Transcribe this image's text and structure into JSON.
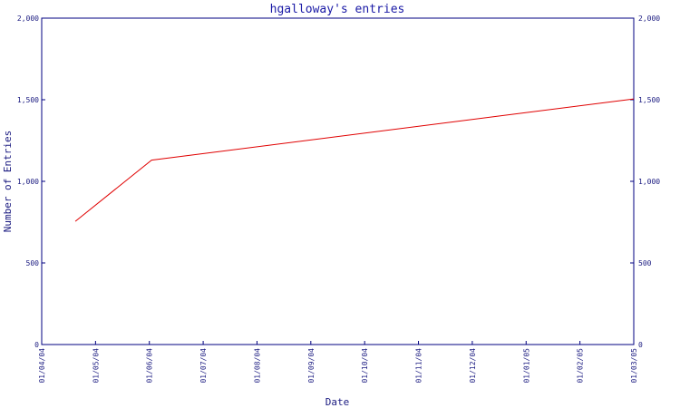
{
  "chart_data": {
    "type": "line",
    "title": "hgalloway's entries",
    "xlabel": "Date",
    "ylabel": "Number of Entries",
    "x_tick_labels": [
      "01/04/04",
      "01/05/04",
      "01/06/04",
      "01/07/04",
      "01/08/04",
      "01/09/04",
      "01/10/04",
      "01/11/04",
      "01/12/04",
      "01/01/05",
      "01/02/05",
      "01/03/05"
    ],
    "y_ticks": [
      0,
      500,
      1000,
      1500,
      2000
    ],
    "y_tick_labels": [
      "0",
      "500",
      "1,000",
      "1,500",
      "2,000"
    ],
    "ylim": [
      0,
      2000
    ],
    "xlim": [
      "2004-04-01",
      "2005-03-01"
    ],
    "grid": false,
    "line_color": "#e00000",
    "axis_color": "#000080",
    "series": [
      {
        "x": [
          "2004-04-20",
          "2004-06-02",
          "2005-03-01"
        ],
        "y": [
          755,
          1130,
          1505
        ]
      }
    ]
  }
}
